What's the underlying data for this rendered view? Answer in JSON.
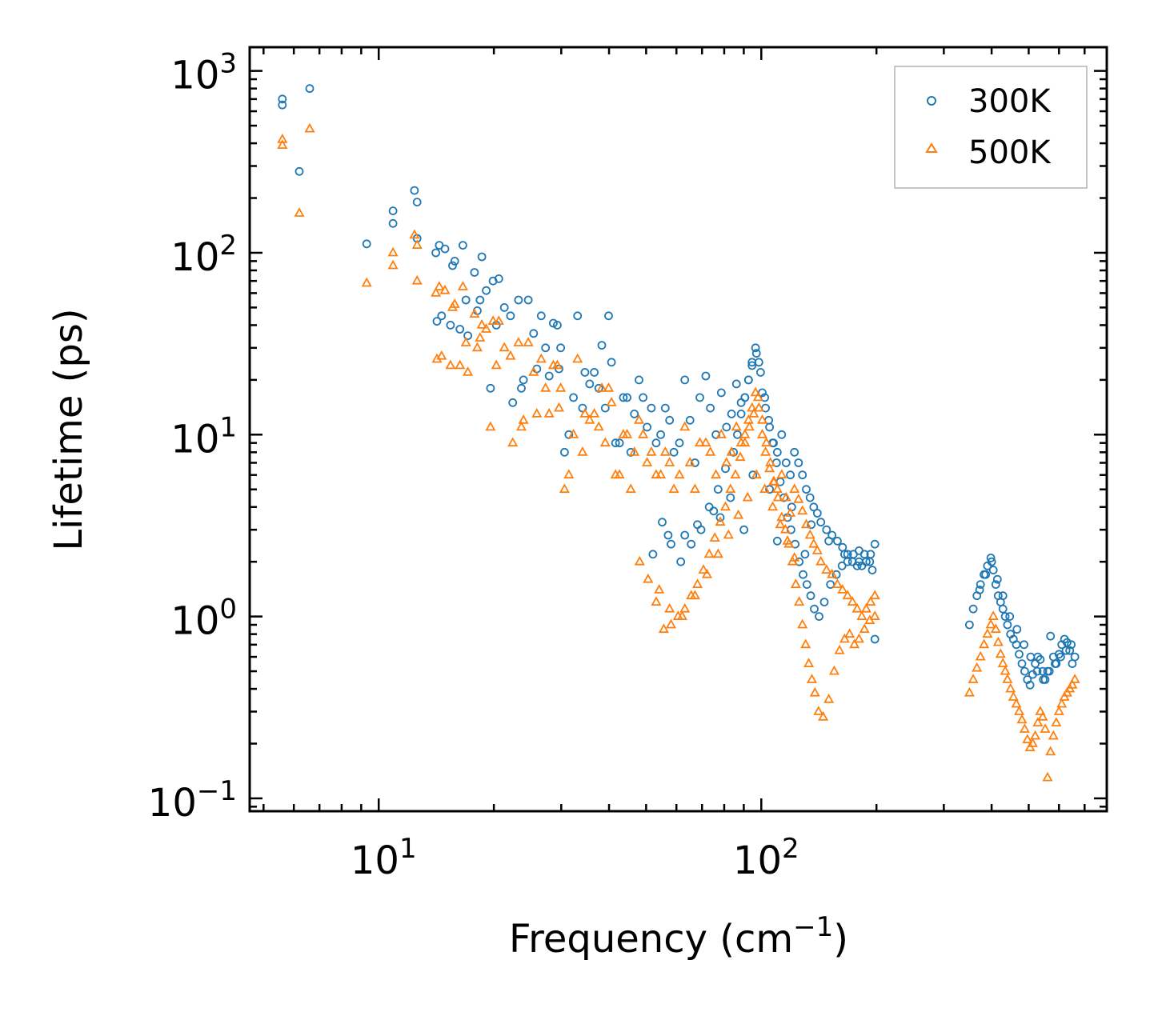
{
  "chart_data": {
    "type": "scatter",
    "title": "",
    "xlabel": "Frequency (cm",
    "xlabel_sup": "−1",
    "xlabel_end": ")",
    "ylabel": "Lifetime (ps)",
    "xscale": "log",
    "yscale": "log",
    "xlim": [
      4.6,
      800
    ],
    "ylim": [
      0.085,
      1350
    ],
    "x_ticks": [
      {
        "value": 10,
        "base": "10",
        "exp": "1"
      },
      {
        "value": 100,
        "base": "10",
        "exp": "2"
      }
    ],
    "y_ticks": [
      {
        "value": 0.1,
        "base": "10",
        "exp": "−1"
      },
      {
        "value": 1,
        "base": "10",
        "exp": "0"
      },
      {
        "value": 10,
        "base": "10",
        "exp": "1"
      },
      {
        "value": 100,
        "base": "10",
        "exp": "2"
      },
      {
        "value": 1000,
        "base": "10",
        "exp": "3"
      }
    ],
    "legend": {
      "position": "top-right"
    },
    "series": [
      {
        "name": "300K",
        "marker": "circle",
        "color": "#1f77b4",
        "x": [
          5.6,
          5.6,
          6.2,
          6.6,
          9.3,
          10.9,
          10.9,
          12.4,
          12.6,
          12.6,
          14.1,
          14.2,
          14.4,
          14.6,
          14.9,
          15.4,
          15.6,
          15.8,
          16.3,
          16.6,
          16.9,
          17.1,
          17.8,
          18.1,
          18.4,
          18.6,
          19.1,
          19.6,
          19.9,
          20.3,
          20.6,
          21.3,
          22.1,
          22.4,
          23.2,
          23.6,
          23.9,
          24.6,
          25.4,
          25.9,
          26.6,
          27.3,
          27.9,
          28.6,
          29.3,
          29.6,
          29.9,
          30.6,
          31.4,
          32.3,
          33.1,
          34.1,
          34.6,
          35.6,
          36.6,
          37.6,
          38.3,
          39.1,
          39.9,
          40.6,
          41.6,
          42.6,
          43.6,
          44.6,
          45.6,
          46.6,
          47.9,
          49.1,
          50.3,
          51.6,
          53.1,
          54.6,
          56.1,
          57.6,
          59.1,
          61.1,
          63.1,
          65.1,
          67.1,
          69.1,
          71.6,
          73.6,
          76.1,
          78.6,
          81.1,
          83.6,
          86.1,
          88.6,
          90.6,
          92.6,
          94.6,
          96.6,
          98.6,
          100.6,
          102.6,
          105.1,
          107.6,
          110.1,
          113.1,
          116.1,
          119.1,
          122.1,
          125.1,
          128.1,
          131.1,
          134.1,
          137.1,
          140.1,
          143.1,
          148.1,
          153.1,
          158.1,
          163.1,
          168.1,
          173.1,
          178.1,
          183.1,
          188.1,
          193.1,
          198.1,
          55.1,
          57.1,
          61.6,
          65.6,
          69.6,
          73.1,
          77.1,
          80.6,
          84.6,
          86.6,
          88.6,
          90.6,
          92.6,
          94.6,
          97.1,
          99.6,
          102.1,
          104.6,
          107.1,
          109.6,
          112.1,
          114.6,
          117.1,
          119.6,
          122.6,
          125.6,
          128.6,
          131.6,
          134.6,
          137.6,
          141.6,
          146.1,
          151.6,
          157.1,
          162.6,
          168.1,
          174.1,
          180.1,
          186.1,
          192.1,
          198.1,
          350.1,
          358.1,
          366.1,
          374.1,
          382.1,
          390.1,
          398.1,
          404.1,
          410.1,
          416.1,
          422.1,
          428.1,
          434.1,
          440.1,
          448.1,
          456.1,
          464.1,
          472.1,
          480.1,
          488.1,
          496.1,
          504.1,
          512.1,
          520.1,
          528.1,
          536.1,
          544.1,
          552.1,
          560.1,
          570.1,
          580.1,
          590.1,
          600.1,
          610.1,
          620.1,
          630.1,
          640.1,
          650.1,
          660.1,
          372.1,
          386.1,
          400.1,
          414.1,
          428.1,
          446.1,
          466.1,
          486.1,
          506.1,
          526.1,
          546.1,
          566.1,
          586.1,
          606.1,
          626.1,
          646.1,
          78.1,
          90.1,
          110.1,
          130.1,
          52.1,
          58.1,
          63.1,
          68.1,
          75.1,
          83.1,
          95.1,
          105.1,
          120.1,
          135.1,
          150.1,
          165.1,
          180.1,
          195.1
        ],
        "y": [
          700,
          650,
          280,
          800,
          112,
          170,
          145,
          220,
          190,
          120,
          100,
          42,
          110,
          45,
          105,
          40,
          85,
          90,
          38,
          110,
          55,
          35,
          78,
          48,
          55,
          95,
          62,
          18,
          70,
          40,
          72,
          50,
          45,
          15,
          55,
          18,
          20,
          55,
          36,
          23,
          45,
          30,
          21,
          41,
          40,
          23,
          30,
          8,
          10,
          16,
          45,
          14,
          22,
          19,
          22,
          18,
          31,
          14,
          45,
          25,
          9,
          9,
          16,
          16,
          8,
          13,
          20,
          16,
          11,
          14,
          9,
          10,
          14,
          12,
          8,
          9,
          20,
          12,
          7,
          16,
          21,
          14,
          10,
          17,
          11,
          13,
          19,
          15,
          16,
          20,
          24,
          30,
          25,
          17,
          14,
          11,
          9,
          8,
          10,
          7,
          6,
          8,
          7,
          6,
          5,
          4.5,
          4,
          3.7,
          3.3,
          3,
          2.8,
          2.6,
          2.4,
          2.2,
          2.0,
          1.9,
          1.9,
          2.0,
          2.2,
          2.5,
          3.3,
          2.8,
          2.0,
          2.5,
          3.0,
          4.0,
          5.0,
          6.5,
          8.0,
          10,
          13,
          16,
          20,
          25,
          28,
          22,
          16,
          12,
          9,
          7,
          5.5,
          4.5,
          3.5,
          3,
          2.5,
          2.0,
          1.7,
          1.5,
          1.3,
          1.1,
          1.0,
          1.2,
          1.5,
          1.7,
          1.9,
          2.0,
          2.2,
          2.3,
          2.2,
          2.0,
          0.75,
          0.9,
          1.1,
          1.3,
          1.5,
          1.7,
          1.9,
          2.1,
          1.8,
          1.5,
          1.3,
          1.2,
          1.1,
          1.0,
          0.9,
          0.8,
          0.75,
          0.7,
          0.62,
          0.55,
          0.5,
          0.45,
          0.42,
          0.48,
          0.55,
          0.6,
          0.58,
          0.5,
          0.45,
          0.5,
          0.78,
          0.6,
          0.55,
          0.62,
          0.7,
          0.75,
          0.72,
          0.65,
          0.55,
          0.6,
          1.4,
          1.7,
          2.0,
          1.6,
          1.3,
          1.0,
          0.85,
          0.7,
          0.6,
          0.5,
          0.45,
          0.5,
          0.55,
          0.6,
          0.65,
          0.7,
          3.5,
          3.0,
          2.6,
          2.2,
          2.2,
          2.5,
          2.8,
          3.2,
          3.8,
          4.5,
          6.0,
          5.0,
          4.0,
          3.2,
          2.6,
          2.2,
          2.0,
          1.8
        ]
      },
      {
        "name": "500K",
        "marker": "triangle",
        "color": "#ff7f0e",
        "x": [
          5.6,
          5.6,
          6.2,
          6.6,
          9.3,
          10.9,
          10.9,
          12.4,
          12.6,
          12.6,
          14.1,
          14.2,
          14.4,
          14.6,
          14.9,
          15.4,
          15.6,
          15.8,
          16.3,
          16.6,
          16.9,
          17.1,
          17.8,
          18.1,
          18.4,
          18.6,
          19.1,
          19.6,
          19.9,
          20.3,
          20.6,
          21.3,
          22.1,
          22.4,
          23.2,
          23.6,
          23.9,
          24.6,
          25.4,
          25.9,
          26.6,
          27.3,
          27.9,
          28.6,
          29.3,
          29.6,
          29.9,
          30.6,
          31.4,
          32.3,
          33.1,
          34.1,
          34.6,
          35.6,
          36.6,
          37.6,
          38.3,
          39.1,
          39.9,
          40.6,
          41.6,
          42.6,
          43.6,
          44.6,
          45.6,
          46.6,
          47.9,
          49.1,
          50.3,
          51.6,
          53.1,
          54.6,
          56.1,
          57.6,
          59.1,
          61.1,
          63.1,
          65.1,
          67.1,
          69.1,
          71.6,
          73.6,
          76.1,
          78.6,
          81.1,
          83.6,
          86.1,
          88.6,
          90.6,
          92.6,
          94.6,
          96.6,
          98.6,
          100.6,
          102.6,
          105.1,
          107.6,
          110.1,
          113.1,
          116.1,
          119.1,
          122.1,
          125.1,
          128.1,
          131.1,
          134.1,
          137.1,
          140.1,
          143.1,
          148.1,
          153.1,
          158.1,
          163.1,
          168.1,
          173.1,
          178.1,
          183.1,
          188.1,
          193.1,
          198.1,
          48.1,
          50.6,
          53.1,
          55.6,
          58.1,
          60.6,
          63.1,
          65.6,
          68.1,
          70.6,
          73.1,
          75.6,
          78.1,
          80.6,
          83.1,
          85.6,
          88.1,
          90.6,
          93.1,
          95.6,
          98.1,
          100.6,
          103.1,
          105.6,
          108.1,
          110.6,
          113.1,
          115.6,
          118.1,
          120.6,
          123.1,
          125.6,
          128.1,
          130.6,
          133.1,
          135.6,
          138.1,
          141.1,
          145.1,
          150.1,
          155.1,
          160.1,
          165.1,
          170.1,
          175.1,
          180.1,
          186.1,
          192.1,
          198.1,
          350.1,
          358.1,
          366.1,
          374.1,
          382.1,
          390.1,
          398.1,
          404.1,
          410.1,
          416.1,
          422.1,
          428.1,
          434.1,
          440.1,
          448.1,
          456.1,
          464.1,
          472.1,
          480.1,
          488.1,
          496.1,
          504.1,
          512.1,
          520.1,
          528.1,
          536.1,
          544.1,
          552.1,
          560.1,
          570.1,
          580.1,
          590.1,
          600.1,
          610.1,
          620.1,
          630.1,
          640.1,
          650.1,
          660.1,
          54.1,
          57.6,
          62.1,
          67.1,
          72.1,
          77.1,
          82.1,
          87.1,
          92.1,
          97.1,
          102.1,
          107.1,
          112.1,
          117.1,
          122.1
        ],
        "y": [
          420,
          390,
          165,
          480,
          68,
          100,
          85,
          125,
          110,
          70,
          60,
          26,
          65,
          27,
          62,
          24,
          50,
          52,
          24,
          65,
          32,
          22,
          46,
          30,
          34,
          40,
          38,
          11,
          42,
          24,
          42,
          30,
          27,
          9,
          32,
          11,
          12,
          32,
          22,
          13,
          26,
          18,
          13,
          24,
          24,
          14,
          18,
          5,
          6,
          10,
          26,
          8,
          13,
          12,
          13,
          11,
          18,
          9,
          18,
          15,
          6,
          6,
          10,
          10,
          5,
          8,
          12,
          10,
          7,
          8,
          6,
          6,
          8,
          7,
          5,
          6,
          11,
          7,
          5,
          9,
          9,
          8,
          6,
          10,
          7,
          8,
          11,
          9,
          10,
          12,
          14,
          17,
          14,
          10,
          8,
          6.5,
          5.5,
          5,
          6,
          4.5,
          3.7,
          5,
          4.4,
          3.8,
          3.2,
          2.8,
          2.5,
          2.3,
          2.0,
          1.8,
          1.7,
          1.5,
          1.4,
          1.3,
          1.2,
          1.1,
          1.0,
          1.1,
          1.2,
          1.3,
          2.0,
          1.6,
          1.2,
          0.85,
          0.9,
          1.0,
          1.1,
          1.3,
          1.5,
          1.8,
          2.2,
          2.7,
          3.3,
          4.0,
          5.0,
          6.0,
          7.5,
          9.0,
          11,
          13,
          16,
          12,
          9,
          7,
          5.5,
          4.5,
          3.5,
          3,
          2.5,
          2.0,
          1.5,
          1.2,
          0.9,
          0.7,
          0.55,
          0.45,
          0.38,
          0.3,
          0.28,
          0.35,
          0.5,
          0.65,
          0.75,
          0.8,
          0.7,
          0.75,
          0.85,
          0.95,
          1.0,
          0.38,
          0.45,
          0.52,
          0.6,
          0.7,
          0.8,
          0.9,
          1.0,
          0.85,
          0.72,
          0.62,
          0.55,
          0.5,
          0.45,
          0.4,
          0.36,
          0.33,
          0.3,
          0.27,
          0.24,
          0.21,
          0.19,
          0.2,
          0.22,
          0.26,
          0.3,
          0.28,
          0.24,
          0.13,
          0.18,
          0.22,
          0.26,
          0.3,
          0.33,
          0.36,
          0.38,
          0.4,
          0.42,
          0.45,
          1.4,
          1.1,
          1.0,
          1.3,
          1.7,
          2.2,
          2.8,
          3.6,
          4.5,
          6.0,
          5.0,
          4.0,
          3.2,
          2.6,
          2.1
        ]
      }
    ]
  }
}
